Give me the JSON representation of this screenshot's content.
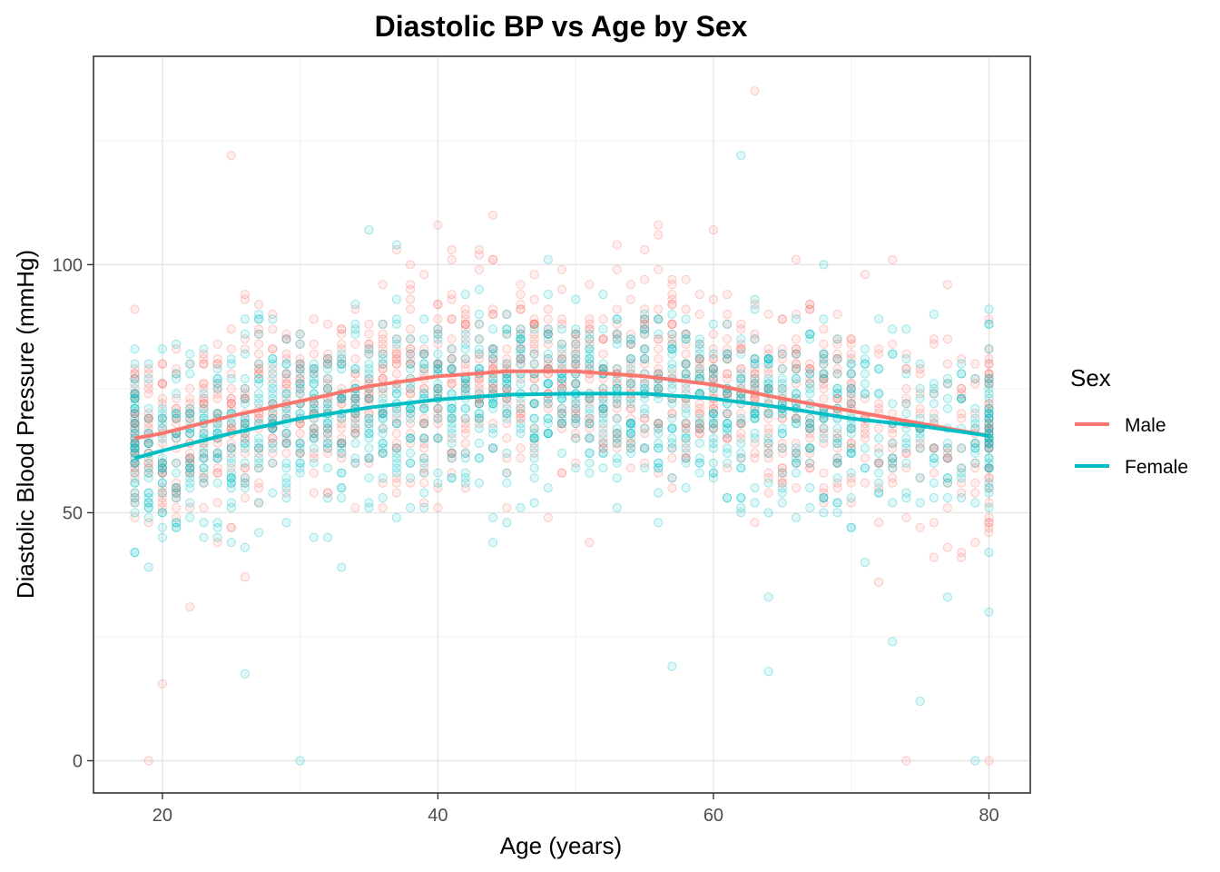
{
  "chart_data": {
    "type": "scatter",
    "title": "Diastolic BP vs Age by Sex",
    "xlabel": "Age (years)",
    "ylabel": "Diastolic Blood Pressure (mmHg)",
    "xlim": [
      15,
      83
    ],
    "ylim": [
      -6.5,
      142
    ],
    "x_ticks": [
      20,
      40,
      60,
      80
    ],
    "x_tick_labels": [
      "20",
      "40",
      "60",
      "80"
    ],
    "y_ticks": [
      0,
      50,
      100
    ],
    "y_tick_labels": [
      "0",
      "50",
      "100"
    ],
    "grid": true,
    "legend": {
      "title": "Sex",
      "position": "right"
    },
    "series": [
      {
        "name": "Male",
        "color": "#F8766D",
        "trend": {
          "x": [
            18,
            20,
            25,
            30,
            35,
            40,
            45,
            50,
            55,
            60,
            65,
            70,
            75,
            80
          ],
          "y": [
            65,
            66,
            69.5,
            72.5,
            75.5,
            77.5,
            78.5,
            78.5,
            77.5,
            75.8,
            73,
            70.5,
            68,
            65.5
          ]
        }
      },
      {
        "name": "Female",
        "color": "#00BFC4",
        "trend": {
          "x": [
            18,
            20,
            25,
            30,
            35,
            40,
            45,
            50,
            55,
            60,
            65,
            70,
            75,
            80
          ],
          "y": [
            61,
            62.5,
            66,
            69,
            71.2,
            72.8,
            73.8,
            74,
            74,
            73,
            71.2,
            69,
            67.5,
            65.5
          ]
        }
      }
    ],
    "outliers": {
      "Male": [
        [
          25,
          122
        ],
        [
          63,
          135
        ],
        [
          20,
          15.5
        ],
        [
          19,
          0
        ],
        [
          80,
          0
        ],
        [
          74,
          0
        ],
        [
          22,
          31
        ],
        [
          26,
          37
        ],
        [
          40,
          108
        ],
        [
          44,
          110
        ],
        [
          56,
          108
        ],
        [
          60,
          107
        ],
        [
          73,
          101
        ],
        [
          72,
          36
        ],
        [
          78,
          41
        ]
      ],
      "Female": [
        [
          62,
          122
        ],
        [
          30,
          0
        ],
        [
          79,
          0
        ],
        [
          26,
          17.5
        ],
        [
          57,
          19
        ],
        [
          64,
          18
        ],
        [
          73,
          24
        ],
        [
          75,
          12
        ],
        [
          64,
          33
        ],
        [
          77,
          33
        ],
        [
          80,
          30
        ],
        [
          33,
          39
        ],
        [
          19,
          39
        ],
        [
          35,
          107
        ],
        [
          48,
          101
        ]
      ]
    }
  }
}
